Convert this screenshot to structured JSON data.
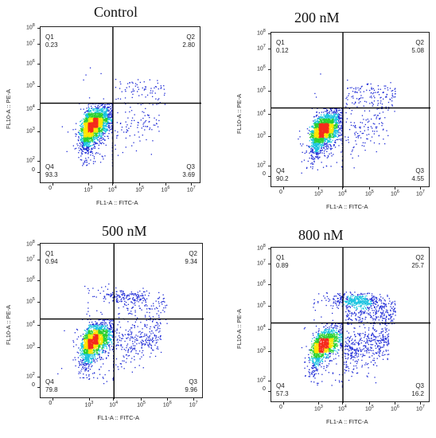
{
  "chart_data": [
    {
      "type": "scatter",
      "title": "Control",
      "xlabel": "FL1-A :: FITC-A",
      "ylabel": "FL10-A :: PE-A",
      "quadrants": [
        {
          "name": "Q1",
          "value": "0.23",
          "position": "top-left"
        },
        {
          "name": "Q2",
          "value": "2.80",
          "position": "top-right"
        },
        {
          "name": "Q3",
          "value": "3.69",
          "position": "bottom-right"
        },
        {
          "name": "Q4",
          "value": "93.3",
          "position": "bottom-left"
        }
      ],
      "gate_x": 10000,
      "gate_y": 20000,
      "cluster_center": [
        1500,
        2000
      ],
      "x_ticks": [
        "0",
        "10^3",
        "10^4",
        "10^5",
        "10^6",
        "10^7"
      ],
      "y_ticks": [
        "0",
        "10^2",
        "10^3",
        "10^4",
        "10^5",
        "10^6",
        "10^7",
        "10^8"
      ],
      "x_scale": "biexponential",
      "y_scale": "biexponential"
    },
    {
      "type": "scatter",
      "title": "200 nM",
      "xlabel": "FL1-A :: FITC-A",
      "ylabel": "FL10-A :: PE-A",
      "quadrants": [
        {
          "name": "Q1",
          "value": "0.12",
          "position": "top-left"
        },
        {
          "name": "Q2",
          "value": "5.08",
          "position": "top-right"
        },
        {
          "name": "Q3",
          "value": "4.55",
          "position": "bottom-right"
        },
        {
          "name": "Q4",
          "value": "90.2",
          "position": "bottom-left"
        }
      ],
      "gate_x": 10000,
      "gate_y": 20000,
      "cluster_center": [
        1500,
        2000
      ],
      "x_ticks": [
        "0",
        "10^3",
        "10^4",
        "10^5",
        "10^6",
        "10^7"
      ],
      "y_ticks": [
        "0",
        "10^2",
        "10^3",
        "10^4",
        "10^5",
        "10^6",
        "10^7",
        "10^8"
      ],
      "x_scale": "biexponential",
      "y_scale": "biexponential"
    },
    {
      "type": "scatter",
      "title": "500 nM",
      "xlabel": "FL1-A :: FITC-A",
      "ylabel": "FL10-A :: PE-A",
      "quadrants": [
        {
          "name": "Q1",
          "value": "0.94",
          "position": "top-left"
        },
        {
          "name": "Q2",
          "value": "9.34",
          "position": "top-right"
        },
        {
          "name": "Q3",
          "value": "9.96",
          "position": "bottom-right"
        },
        {
          "name": "Q4",
          "value": "79.8",
          "position": "bottom-left"
        }
      ],
      "gate_x": 10000,
      "gate_y": 20000,
      "cluster_center": [
        1500,
        2000
      ],
      "x_ticks": [
        "0",
        "10^3",
        "10^4",
        "10^5",
        "10^6",
        "10^7"
      ],
      "y_ticks": [
        "0",
        "10^2",
        "10^3",
        "10^4",
        "10^5",
        "10^6",
        "10^7",
        "10^8"
      ],
      "x_scale": "biexponential",
      "y_scale": "biexponential"
    },
    {
      "type": "scatter",
      "title": "800 nM",
      "xlabel": "FL1-A :: FITC-A",
      "ylabel": "FL10-A :: PE-A",
      "quadrants": [
        {
          "name": "Q1",
          "value": "0.89",
          "position": "top-left"
        },
        {
          "name": "Q2",
          "value": "25.7",
          "position": "top-right"
        },
        {
          "name": "Q3",
          "value": "16.2",
          "position": "bottom-right"
        },
        {
          "name": "Q4",
          "value": "57.3",
          "position": "bottom-left"
        }
      ],
      "gate_x": 10000,
      "gate_y": 20000,
      "cluster_center": [
        1500,
        2000
      ],
      "x_ticks": [
        "0",
        "10^3",
        "10^4",
        "10^5",
        "10^6",
        "10^7"
      ],
      "y_ticks": [
        "0",
        "10^2",
        "10^3",
        "10^4",
        "10^5",
        "10^6",
        "10^7",
        "10^8"
      ],
      "x_scale": "biexponential",
      "y_scale": "biexponential"
    }
  ],
  "colors": {
    "density_low": "#1f2bd6",
    "density_mid_low": "#19c4e0",
    "density_mid": "#2bd130",
    "density_mid_high": "#ffe600",
    "density_high": "#f52b1c",
    "gate_line": "#000000"
  }
}
